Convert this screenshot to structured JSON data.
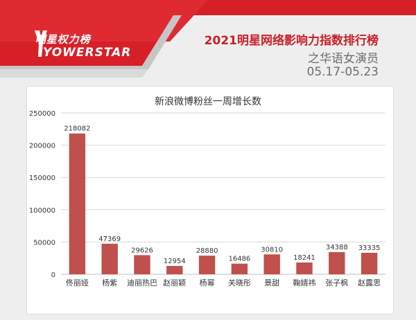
{
  "brand": {
    "logo_cn": "明星权力榜",
    "logo_en": "YOWERSTAR"
  },
  "header": {
    "headline": "2021明星网络影响力指数排行榜",
    "subtitle": "之华语女演员",
    "date_range": "05.17-05.23"
  },
  "colors": {
    "accent": "#c8202a",
    "bar": "#c0504d"
  },
  "chart_data": {
    "type": "bar",
    "title": "新浪微博粉丝一周增长数",
    "categories": [
      "佟丽娅",
      "杨紫",
      "迪丽热巴",
      "赵丽颖",
      "杨幂",
      "关晓彤",
      "景甜",
      "鞠婧祎",
      "张子枫",
      "赵露思"
    ],
    "values": [
      218082,
      47369,
      29626,
      12954,
      28880,
      16486,
      30810,
      18241,
      34388,
      33335
    ],
    "yticks": [
      0,
      50000,
      100000,
      150000,
      200000,
      250000
    ],
    "ylim": [
      0,
      250000
    ],
    "grid": true,
    "legend": "none"
  }
}
